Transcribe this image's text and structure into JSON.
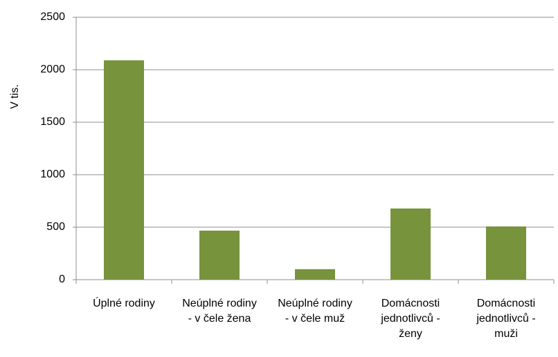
{
  "chart_data": {
    "type": "bar",
    "ylabel": "V tis.",
    "categories": [
      [
        "Úplné rodiny"
      ],
      [
        "Neúplné rodiny",
        "- v čele žena"
      ],
      [
        "Neúplné rodiny",
        "- v čele muž"
      ],
      [
        "Domácnosti",
        "jednotlivců -",
        "ženy"
      ],
      [
        "Domácnosti",
        "jednotlivců -",
        "muži"
      ]
    ],
    "values": [
      2090,
      467,
      100,
      678,
      507
    ],
    "color": "#77933c",
    "ylim": [
      0,
      2500
    ],
    "yticks": [
      0,
      500,
      1000,
      1500,
      2000,
      2500
    ],
    "grid": true
  }
}
